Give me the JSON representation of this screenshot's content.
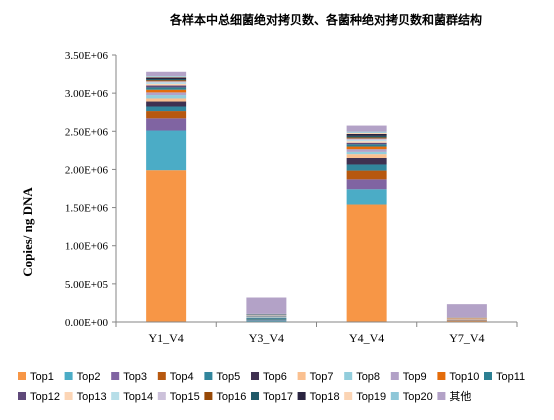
{
  "chart_data": {
    "type": "bar",
    "stacked": true,
    "title": "各样本中总细菌绝对拷贝数、各菌种绝对拷贝数和菌群结构",
    "ylabel": "Copies/ ng DNA",
    "categories": [
      "Y1_V4",
      "Y3_V4",
      "Y4_V4",
      "Y7_V4"
    ],
    "ylim": [
      0,
      3500000
    ],
    "yticks": [
      0,
      500000,
      1000000,
      1500000,
      2000000,
      2500000,
      3000000,
      3500000
    ],
    "ytick_labels": [
      "0.00E+00",
      "5.00E+05",
      "1.00E+06",
      "1.50E+06",
      "2.00E+06",
      "2.50E+06",
      "3.00E+06",
      "3.50E+06"
    ],
    "grid": false,
    "legend_position": "bottom",
    "series": [
      {
        "name": "Top1",
        "color": "#F79646",
        "values": [
          1990000,
          5000,
          1540000,
          15000
        ]
      },
      {
        "name": "Top2",
        "color": "#4BACC6",
        "values": [
          520000,
          15000,
          200000,
          2000
        ]
      },
      {
        "name": "Top3",
        "color": "#8064A2",
        "values": [
          160000,
          5000,
          130000,
          3000
        ]
      },
      {
        "name": "Top4",
        "color": "#B7580F",
        "values": [
          95000,
          5000,
          115000,
          5000
        ]
      },
      {
        "name": "Top5",
        "color": "#31859C",
        "values": [
          60000,
          20000,
          80000,
          2000
        ]
      },
      {
        "name": "Top6",
        "color": "#3F3151",
        "values": [
          65000,
          5000,
          85000,
          2000
        ]
      },
      {
        "name": "Top7",
        "color": "#FAC090",
        "values": [
          40000,
          3000,
          50000,
          3000
        ]
      },
      {
        "name": "Top8",
        "color": "#92CDDC",
        "values": [
          45000,
          8000,
          30000,
          2000
        ]
      },
      {
        "name": "Top9",
        "color": "#B2A1C7",
        "values": [
          35000,
          5000,
          35000,
          3000
        ]
      },
      {
        "name": "Top10",
        "color": "#E46C0A",
        "values": [
          35000,
          2000,
          35000,
          8000
        ]
      },
      {
        "name": "Top11",
        "color": "#2C7F92",
        "values": [
          30000,
          5000,
          30000,
          1000
        ]
      },
      {
        "name": "Top12",
        "color": "#5F497A",
        "values": [
          25000,
          3000,
          20000,
          1000
        ]
      },
      {
        "name": "Top13",
        "color": "#FCD5B5",
        "values": [
          20000,
          2000,
          20000,
          2000
        ]
      },
      {
        "name": "Top14",
        "color": "#B7DEE8",
        "values": [
          20000,
          3000,
          15000,
          1000
        ]
      },
      {
        "name": "Top15",
        "color": "#CCC1DA",
        "values": [
          15000,
          3000,
          20000,
          2000
        ]
      },
      {
        "name": "Top16",
        "color": "#974806",
        "values": [
          15000,
          2000,
          15000,
          2000
        ]
      },
      {
        "name": "Top17",
        "color": "#215968",
        "values": [
          15000,
          5000,
          20000,
          1000
        ]
      },
      {
        "name": "Top18",
        "color": "#2A2440",
        "values": [
          20000,
          5000,
          25000,
          1000
        ]
      },
      {
        "name": "Top19",
        "color": "#FBD4B4",
        "values": [
          10000,
          2000,
          15000,
          2000
        ]
      },
      {
        "name": "Top20",
        "color": "#8FC7D8",
        "values": [
          10000,
          3000,
          15000,
          1000
        ]
      },
      {
        "name": "其他",
        "color": "#B3A2C7",
        "values": [
          55000,
          215000,
          80000,
          175000
        ]
      }
    ]
  }
}
